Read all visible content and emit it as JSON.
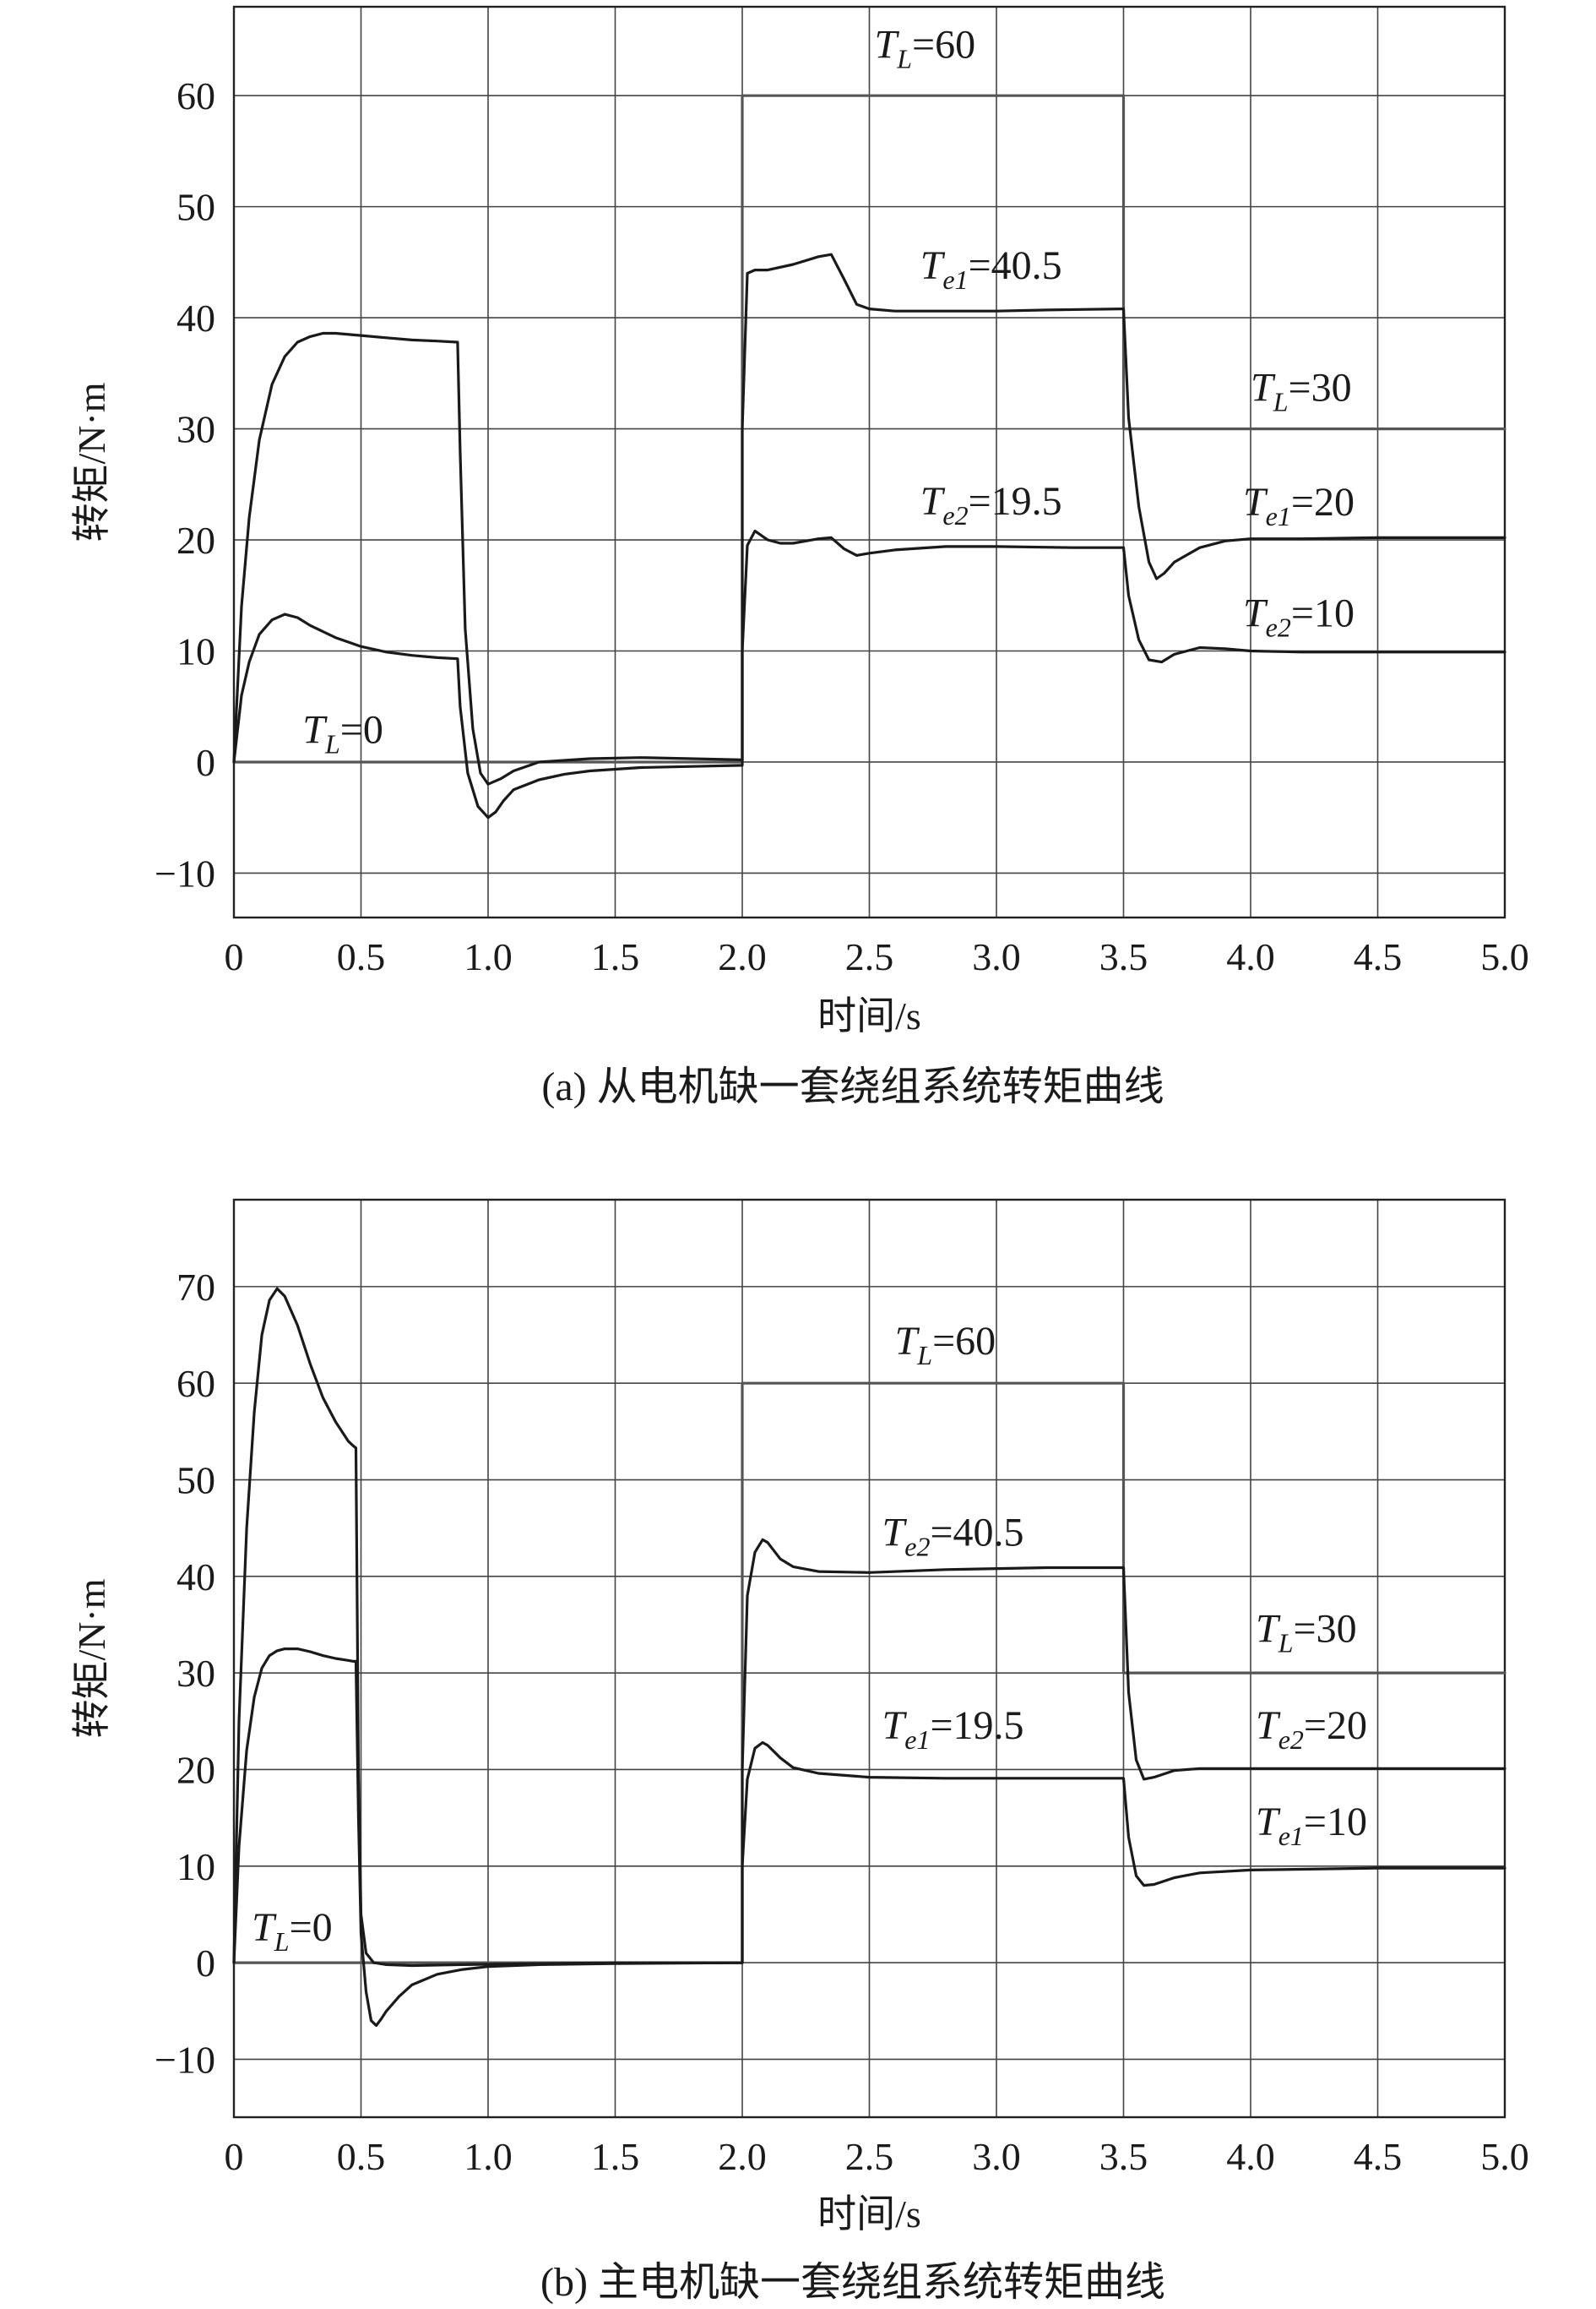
{
  "chart_data": [
    {
      "type": "line",
      "caption": "(a) 从电机缺一套绕组系统转矩曲线",
      "xlabel": "时间/s",
      "ylabel": "转矩/N·m",
      "xlim": [
        0,
        5.0
      ],
      "ylim": [
        -14,
        68
      ],
      "xticks": [
        0,
        0.5,
        1.0,
        1.5,
        2.0,
        2.5,
        3.0,
        3.5,
        4.0,
        4.5,
        5.0
      ],
      "xtick_labels": [
        "0",
        "0.5",
        "1.0",
        "1.5",
        "2.0",
        "2.5",
        "3.0",
        "3.5",
        "4.0",
        "4.5",
        "5.0"
      ],
      "yticks": [
        -10,
        0,
        10,
        20,
        30,
        40,
        50,
        60
      ],
      "ytick_labels": [
        "−10",
        "0",
        "10",
        "20",
        "30",
        "40",
        "50",
        "60"
      ],
      "grid": true,
      "series": [
        {
          "color": "#555555",
          "x": [
            0,
            2.0,
            2.0,
            3.5,
            3.5,
            5.0
          ],
          "y": [
            0,
            0,
            60,
            60,
            30,
            30
          ]
        },
        {
          "color": "#1a1a1a",
          "x": [
            0,
            0.03,
            0.06,
            0.1,
            0.15,
            0.2,
            0.25,
            0.3,
            0.35,
            0.4,
            0.5,
            0.6,
            0.7,
            0.8,
            0.88,
            0.89,
            0.91,
            0.94,
            0.97,
            1.0,
            1.05,
            1.1,
            1.2,
            1.4,
            1.6,
            1.8,
            2.0,
            2.0,
            2.02,
            2.05,
            2.1,
            2.2,
            2.3,
            2.35,
            2.4,
            2.45,
            2.5,
            2.6,
            2.8,
            3.0,
            3.2,
            3.49,
            3.5,
            3.52,
            3.56,
            3.6,
            3.63,
            3.66,
            3.7,
            3.8,
            3.9,
            4.0,
            4.2,
            4.5,
            5.0
          ],
          "y": [
            0,
            14,
            22,
            29,
            34,
            36.5,
            37.8,
            38.3,
            38.6,
            38.6,
            38.4,
            38.2,
            38.0,
            37.9,
            37.8,
            28,
            12,
            3,
            -1,
            -2,
            -1.5,
            -0.8,
            0,
            0.3,
            0.4,
            0.3,
            0.2,
            30,
            44,
            44.3,
            44.3,
            44.8,
            45.5,
            45.7,
            43.5,
            41.2,
            40.8,
            40.6,
            40.6,
            40.6,
            40.7,
            40.8,
            40.8,
            31,
            23,
            18,
            16.5,
            17,
            18,
            19.3,
            19.9,
            20.1,
            20.1,
            20.2,
            20.2
          ]
        },
        {
          "color": "#1a1a1a",
          "x": [
            0,
            0.03,
            0.06,
            0.1,
            0.15,
            0.2,
            0.25,
            0.3,
            0.4,
            0.5,
            0.6,
            0.7,
            0.8,
            0.88,
            0.89,
            0.92,
            0.96,
            1.0,
            1.03,
            1.06,
            1.1,
            1.2,
            1.3,
            1.4,
            1.6,
            1.8,
            2.0,
            2.0,
            2.02,
            2.05,
            2.1,
            2.15,
            2.2,
            2.3,
            2.35,
            2.4,
            2.45,
            2.5,
            2.6,
            2.8,
            3.0,
            3.3,
            3.49,
            3.5,
            3.52,
            3.56,
            3.6,
            3.65,
            3.7,
            3.8,
            3.9,
            4.0,
            4.2,
            4.5,
            5.0
          ],
          "y": [
            0,
            6,
            9,
            11.5,
            12.8,
            13.3,
            13,
            12.3,
            11.2,
            10.4,
            9.9,
            9.6,
            9.4,
            9.3,
            5,
            -1,
            -4,
            -5,
            -4.5,
            -3.5,
            -2.5,
            -1.6,
            -1.1,
            -0.8,
            -0.5,
            -0.4,
            -0.3,
            10,
            19.5,
            20.8,
            20,
            19.7,
            19.7,
            20.1,
            20.2,
            19.2,
            18.6,
            18.8,
            19.1,
            19.4,
            19.4,
            19.3,
            19.3,
            19.3,
            15,
            11,
            9.2,
            9,
            9.7,
            10.3,
            10.2,
            10,
            9.9,
            9.9,
            9.9
          ]
        }
      ],
      "annotations": [
        {
          "base": "T",
          "sub": "L",
          "rest": "=60",
          "x": 2.52,
          "y": 63.4
        },
        {
          "base": "T",
          "sub": "e1",
          "rest": "=40.5",
          "x": 2.7,
          "y": 43.5
        },
        {
          "base": "T",
          "sub": "L",
          "rest": "=30",
          "x": 4.0,
          "y": 32.5
        },
        {
          "base": "T",
          "sub": "e2",
          "rest": "=19.5",
          "x": 2.7,
          "y": 22.3
        },
        {
          "base": "T",
          "sub": "e1",
          "rest": "=20",
          "x": 3.97,
          "y": 22.2
        },
        {
          "base": "T",
          "sub": "e2",
          "rest": "=10",
          "x": 3.97,
          "y": 12.2
        },
        {
          "base": "T",
          "sub": "L",
          "rest": "=0",
          "x": 0.27,
          "y": 1.7
        }
      ]
    },
    {
      "type": "line",
      "caption": "(b) 主电机缺一套绕组系统转矩曲线",
      "xlabel": "时间/s",
      "ylabel": "转矩/N·m",
      "xlim": [
        0,
        5.0
      ],
      "ylim": [
        -16,
        79
      ],
      "xticks": [
        0,
        0.5,
        1.0,
        1.5,
        2.0,
        2.5,
        3.0,
        3.5,
        4.0,
        4.5,
        5.0
      ],
      "xtick_labels": [
        "0",
        "0.5",
        "1.0",
        "1.5",
        "2.0",
        "2.5",
        "3.0",
        "3.5",
        "4.0",
        "4.5",
        "5.0"
      ],
      "yticks": [
        -10,
        0,
        10,
        20,
        30,
        40,
        50,
        60,
        70
      ],
      "ytick_labels": [
        "−10",
        "0",
        "10",
        "20",
        "30",
        "40",
        "50",
        "60",
        "70"
      ],
      "grid": true,
      "series": [
        {
          "color": "#555555",
          "x": [
            0,
            2.0,
            2.0,
            3.5,
            3.5,
            5.0
          ],
          "y": [
            0,
            0,
            60,
            60,
            30,
            30
          ]
        },
        {
          "color": "#1a1a1a",
          "x": [
            0,
            0.02,
            0.05,
            0.08,
            0.11,
            0.14,
            0.17,
            0.2,
            0.25,
            0.3,
            0.35,
            0.4,
            0.45,
            0.47,
            0.48,
            0.49,
            0.5,
            0.52,
            0.55,
            0.6,
            0.7,
            0.9,
            1.2,
            1.5,
            2.0,
            2.0,
            2.02,
            2.05,
            2.08,
            2.1,
            2.15,
            2.2,
            2.3,
            2.5,
            2.8,
            3.2,
            3.49,
            3.5,
            3.52,
            3.55,
            3.58,
            3.62,
            3.7,
            3.8,
            4.0,
            4.5,
            5.0
          ],
          "y": [
            0,
            25,
            45,
            57,
            65,
            68.6,
            69.8,
            69,
            66,
            62,
            58.5,
            56,
            54,
            53.5,
            53.3,
            20,
            5,
            1,
            0,
            -0.2,
            -0.3,
            -0.2,
            -0.1,
            0,
            0,
            20,
            38,
            42.5,
            43.8,
            43.5,
            41.8,
            41,
            40.5,
            40.4,
            40.7,
            40.9,
            40.9,
            40.9,
            28,
            21,
            19,
            19.2,
            19.9,
            20.1,
            20.1,
            20.1,
            20.1
          ]
        },
        {
          "color": "#1a1a1a",
          "x": [
            0,
            0.02,
            0.05,
            0.08,
            0.11,
            0.14,
            0.17,
            0.2,
            0.25,
            0.3,
            0.35,
            0.4,
            0.45,
            0.47,
            0.48,
            0.49,
            0.5,
            0.52,
            0.54,
            0.56,
            0.58,
            0.6,
            0.65,
            0.7,
            0.8,
            0.9,
            1.0,
            1.2,
            1.5,
            2.0,
            2.0,
            2.02,
            2.05,
            2.08,
            2.1,
            2.15,
            2.2,
            2.3,
            2.5,
            2.8,
            3.2,
            3.49,
            3.5,
            3.52,
            3.55,
            3.58,
            3.62,
            3.7,
            3.8,
            4.0,
            4.5,
            5.0
          ],
          "y": [
            0,
            12,
            22,
            27.5,
            30.5,
            31.8,
            32.3,
            32.5,
            32.5,
            32.2,
            31.8,
            31.5,
            31.3,
            31.2,
            31.2,
            15,
            3,
            -3,
            -6,
            -6.5,
            -5.8,
            -5,
            -3.5,
            -2.3,
            -1.2,
            -0.7,
            -0.4,
            -0.2,
            -0.1,
            0,
            10,
            19,
            22.2,
            22.8,
            22.5,
            21.2,
            20.2,
            19.6,
            19.2,
            19.1,
            19.1,
            19.1,
            19.1,
            13,
            9,
            8,
            8.1,
            8.8,
            9.3,
            9.6,
            9.8,
            9.8
          ]
        }
      ],
      "annotations": [
        {
          "base": "T",
          "sub": "L",
          "rest": "=60",
          "x": 2.6,
          "y": 63
        },
        {
          "base": "T",
          "sub": "e2",
          "rest": "=40.5",
          "x": 2.55,
          "y": 43.2
        },
        {
          "base": "T",
          "sub": "L",
          "rest": "=30",
          "x": 4.02,
          "y": 33.2
        },
        {
          "base": "T",
          "sub": "e1",
          "rest": "=19.5",
          "x": 2.55,
          "y": 23.2
        },
        {
          "base": "T",
          "sub": "e2",
          "rest": "=20",
          "x": 4.02,
          "y": 23.2
        },
        {
          "base": "T",
          "sub": "e1",
          "rest": "=10",
          "x": 4.02,
          "y": 13.2
        },
        {
          "base": "T",
          "sub": "L",
          "rest": "=0",
          "x": 0.07,
          "y": 2.3
        }
      ]
    }
  ]
}
